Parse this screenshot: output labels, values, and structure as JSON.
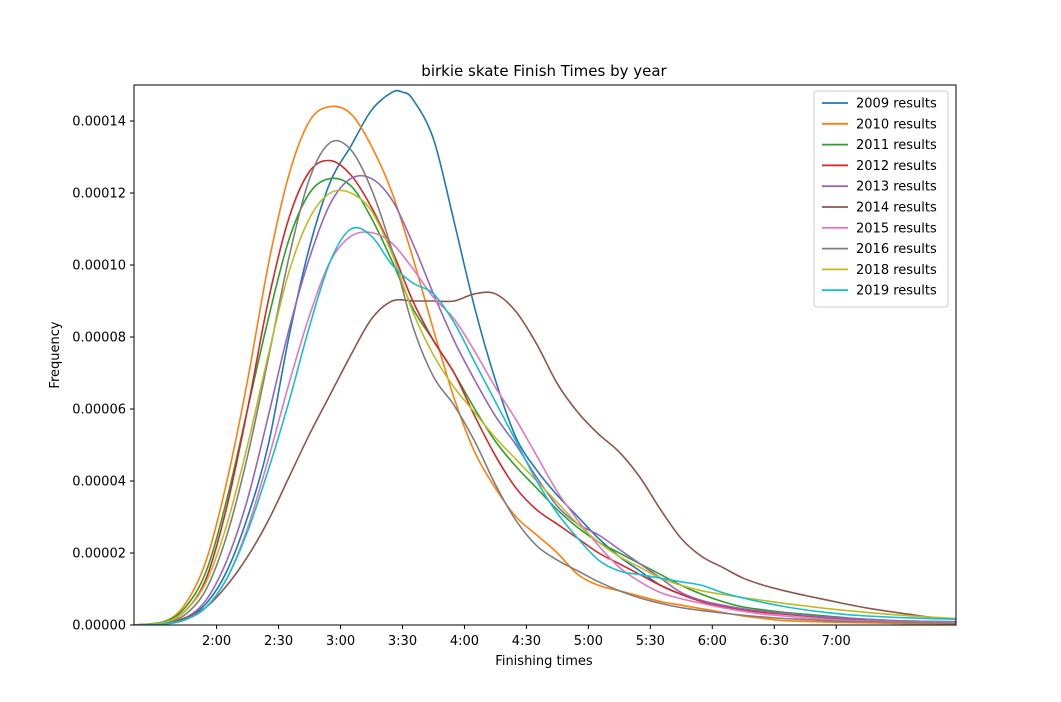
{
  "chart_data": {
    "type": "line",
    "title": "birkie skate Finish Times by year",
    "xlabel": "Finishing times",
    "ylabel": "Frequency",
    "xlim_minutes": [
      80,
      278
    ],
    "ylim": [
      0,
      0.00015
    ],
    "x_ticks": [
      {
        "label": "2:00",
        "minutes": 120
      },
      {
        "label": "2:30",
        "minutes": 150
      },
      {
        "label": "3:00",
        "minutes": 180
      },
      {
        "label": "3:30",
        "minutes": 210
      },
      {
        "label": "4:00",
        "minutes": 240
      },
      {
        "label": "4:30",
        "minutes": 270
      },
      {
        "label": "5:00",
        "minutes": 300
      },
      {
        "label": "5:30",
        "minutes": 330
      },
      {
        "label": "6:00",
        "minutes": 360
      },
      {
        "label": "6:30",
        "minutes": 390
      },
      {
        "label": "7:00",
        "minutes": 420
      }
    ],
    "y_ticks": [
      "0.00000",
      "0.00002",
      "0.00004",
      "0.00006",
      "0.00008",
      "0.00010",
      "0.00012",
      "0.00014"
    ],
    "y_tick_values": [
      0,
      2e-05,
      4e-05,
      6e-05,
      8e-05,
      0.0001,
      0.00012,
      0.00014
    ],
    "grid": false,
    "legend_position": "top-right",
    "series": [
      {
        "name": "2009 results",
        "color": "#1f77b4",
        "x": [
          80,
          95,
          105,
          115,
          125,
          135,
          145,
          155,
          165,
          175,
          185,
          195,
          205,
          210,
          215,
          225,
          235,
          245,
          255,
          265,
          275,
          285,
          295,
          305,
          315,
          325,
          335,
          345,
          355,
          365,
          375,
          385,
          395,
          405,
          415,
          425,
          435,
          445,
          455,
          465,
          478
        ],
        "y": [
          0,
          5e-07,
          2e-06,
          6e-06,
          1.5e-05,
          3e-05,
          5e-05,
          8e-05,
          0.000105,
          0.000123,
          0.000133,
          0.000143,
          0.000148,
          0.000148,
          0.000146,
          0.000135,
          0.000112,
          8.8e-05,
          6.8e-05,
          5.2e-05,
          4.3e-05,
          3.6e-05,
          3e-05,
          2.4e-05,
          1.9e-05,
          1.5e-05,
          1.1e-05,
          8.5e-06,
          6.5e-06,
          5e-06,
          4.3e-06,
          3.8e-06,
          3.3e-06,
          2.8e-06,
          2.3e-06,
          1.8e-06,
          1.5e-06,
          1.2e-06,
          1e-06,
          8e-07,
          6e-07
        ]
      },
      {
        "name": "2010 results",
        "color": "#ff7f0e",
        "x": [
          80,
          95,
          105,
          115,
          125,
          135,
          145,
          155,
          165,
          175,
          185,
          195,
          205,
          215,
          225,
          235,
          245,
          255,
          265,
          275,
          285,
          295,
          305,
          315,
          325,
          335,
          345,
          355,
          365,
          375,
          385,
          395,
          405,
          415,
          425,
          435,
          445,
          455,
          465,
          478
        ],
        "y": [
          0,
          1e-06,
          6e-06,
          1.8e-05,
          4e-05,
          6.8e-05,
          0.0001,
          0.000125,
          0.00014,
          0.000144,
          0.000142,
          0.000133,
          0.00012,
          0.000102,
          8.2e-05,
          6.3e-05,
          4.8e-05,
          3.8e-05,
          3e-05,
          2.5e-05,
          2e-05,
          1.4e-05,
          1.1e-05,
          9.5e-06,
          8e-06,
          6.5e-06,
          5.5e-06,
          4.5e-06,
          3.5e-06,
          2.5e-06,
          1.8e-06,
          1.2e-06,
          1e-06,
          8e-07,
          7e-07,
          6e-07,
          5e-07,
          4e-07,
          4e-07,
          3e-07
        ]
      },
      {
        "name": "2011 results",
        "color": "#2ca02c",
        "x": [
          80,
          95,
          105,
          115,
          125,
          135,
          145,
          155,
          165,
          175,
          185,
          195,
          205,
          215,
          225,
          235,
          245,
          255,
          265,
          275,
          285,
          295,
          305,
          315,
          325,
          335,
          345,
          355,
          365,
          375,
          385,
          395,
          405,
          415,
          425,
          435,
          445,
          455,
          465,
          478
        ],
        "y": [
          0,
          1e-06,
          5e-06,
          1.5e-05,
          3.5e-05,
          6e-05,
          8.5e-05,
          0.000107,
          0.00012,
          0.000124,
          0.000122,
          0.000113,
          0.000101,
          8.8e-05,
          7.9e-05,
          7e-05,
          6e-05,
          5.1e-05,
          4.4e-05,
          3.8e-05,
          3.2e-05,
          2.7e-05,
          2.3e-05,
          2e-05,
          1.7e-05,
          1.4e-05,
          1.1e-05,
          8.5e-06,
          6.5e-06,
          5e-06,
          4.2e-06,
          3.5e-06,
          3e-06,
          2.5e-06,
          2e-06,
          1.6e-06,
          1.3e-06,
          1.1e-06,
          1e-06,
          9e-07
        ]
      },
      {
        "name": "2012 results",
        "color": "#d62728",
        "x": [
          80,
          95,
          105,
          115,
          125,
          135,
          145,
          155,
          165,
          175,
          185,
          195,
          205,
          215,
          225,
          235,
          245,
          255,
          265,
          275,
          285,
          295,
          305,
          315,
          325,
          335,
          345,
          355,
          365,
          375,
          385,
          395,
          405,
          415,
          425,
          435,
          445,
          455,
          465,
          478
        ],
        "y": [
          0,
          8e-07,
          4e-06,
          1.3e-05,
          3.3e-05,
          6e-05,
          9e-05,
          0.000113,
          0.000126,
          0.000129,
          0.000125,
          0.000116,
          0.000104,
          9e-05,
          7.9e-05,
          7e-05,
          5.8e-05,
          4.7e-05,
          3.8e-05,
          3.2e-05,
          2.8e-05,
          2.4e-05,
          2e-05,
          1.7e-05,
          1.4e-05,
          1.1e-05,
          8.5e-06,
          6.5e-06,
          5.2e-06,
          4.2e-06,
          3.5e-06,
          3e-06,
          2.5e-06,
          2e-06,
          1.6e-06,
          1.3e-06,
          1.1e-06,
          9e-07,
          8e-07,
          7e-07
        ]
      },
      {
        "name": "2013 results",
        "color": "#9467bd",
        "x": [
          80,
          95,
          105,
          115,
          125,
          135,
          145,
          155,
          165,
          175,
          185,
          195,
          205,
          215,
          225,
          235,
          245,
          255,
          265,
          275,
          285,
          295,
          305,
          315,
          325,
          335,
          345,
          355,
          365,
          375,
          385,
          395,
          405,
          415,
          425,
          435,
          445,
          455,
          465,
          478
        ],
        "y": [
          0,
          5e-07,
          2e-06,
          7e-06,
          1.8e-05,
          3.5e-05,
          5.8e-05,
          8.2e-05,
          0.000102,
          0.000117,
          0.000124,
          0.000124,
          0.000118,
          0.000106,
          9.2e-05,
          7.9e-05,
          6.8e-05,
          5.8e-05,
          5e-05,
          4.1e-05,
          3.3e-05,
          2.8e-05,
          2.5e-05,
          2.1e-05,
          1.7e-05,
          1.3e-05,
          9e-06,
          6.8e-06,
          5.5e-06,
          4.5e-06,
          3.8e-06,
          3.2e-06,
          2.7e-06,
          2.2e-06,
          1.9e-06,
          1.6e-06,
          1.3e-06,
          1.1e-06,
          1e-06,
          9e-07
        ]
      },
      {
        "name": "2014 results",
        "color": "#8c564b",
        "x": [
          80,
          95,
          105,
          115,
          125,
          135,
          145,
          155,
          165,
          175,
          185,
          195,
          205,
          215,
          225,
          235,
          245,
          255,
          265,
          275,
          285,
          295,
          305,
          315,
          325,
          335,
          345,
          355,
          365,
          375,
          385,
          395,
          405,
          415,
          425,
          435,
          445,
          455,
          465,
          478
        ],
        "y": [
          0,
          5e-07,
          2e-06,
          5e-06,
          1.1e-05,
          1.9e-05,
          2.9e-05,
          4.1e-05,
          5.3e-05,
          6.4e-05,
          7.5e-05,
          8.5e-05,
          9e-05,
          9e-05,
          9e-05,
          9e-05,
          9.2e-05,
          9.2e-05,
          8.7e-05,
          7.8e-05,
          6.7e-05,
          5.9e-05,
          5.3e-05,
          4.8e-05,
          4.1e-05,
          3.2e-05,
          2.4e-05,
          1.9e-05,
          1.6e-05,
          1.3e-05,
          1.1e-05,
          9.5e-06,
          8.2e-06,
          7e-06,
          5.8e-06,
          4.7e-06,
          3.8e-06,
          3e-06,
          2.2e-06,
          1.5e-06
        ]
      },
      {
        "name": "2015 results",
        "color": "#e377c2",
        "x": [
          80,
          95,
          105,
          115,
          125,
          135,
          145,
          155,
          165,
          175,
          185,
          195,
          205,
          215,
          225,
          235,
          245,
          255,
          265,
          275,
          285,
          295,
          305,
          315,
          325,
          335,
          345,
          355,
          365,
          375,
          385,
          395,
          405,
          415,
          425,
          435,
          445,
          455,
          465,
          478
        ],
        "y": [
          0,
          3e-07,
          1.5e-06,
          5e-06,
          1.3e-05,
          2.7e-05,
          4.6e-05,
          6.7e-05,
          8.6e-05,
          0.000101,
          0.000108,
          0.000109,
          0.000106,
          9.9e-05,
          9.1e-05,
          8.5e-05,
          7.6e-05,
          6.6e-05,
          5.7e-05,
          4.7e-05,
          3.7e-05,
          2.9e-05,
          2.2e-05,
          1.6e-05,
          1.2e-05,
          9e-06,
          7.3e-06,
          6e-06,
          4.8e-06,
          3.8e-06,
          3e-06,
          2.5e-06,
          2e-06,
          1.6e-06,
          1.3e-06,
          1.1e-06,
          9e-07,
          8e-07,
          7e-07,
          6e-07
        ]
      },
      {
        "name": "2016 results",
        "color": "#7f7f7f",
        "x": [
          80,
          95,
          105,
          115,
          125,
          135,
          145,
          155,
          165,
          175,
          185,
          195,
          205,
          215,
          225,
          235,
          245,
          255,
          265,
          275,
          285,
          295,
          305,
          315,
          325,
          335,
          345,
          355,
          365,
          375,
          385,
          395,
          405,
          415,
          425,
          435,
          445,
          455,
          465,
          478
        ],
        "y": [
          0,
          6e-07,
          3e-06,
          1e-05,
          2.5e-05,
          4.7e-05,
          7.4e-05,
          0.000102,
          0.000124,
          0.000134,
          0.000132,
          0.000121,
          0.000104,
          8.3e-05,
          6.9e-05,
          6.1e-05,
          5.1e-05,
          3.9e-05,
          2.9e-05,
          2.2e-05,
          1.8e-05,
          1.5e-05,
          1.2e-05,
          9.5e-06,
          7.5e-06,
          6e-06,
          4.8e-06,
          4e-06,
          3.3e-06,
          2.7e-06,
          2.2e-06,
          1.8e-06,
          1.5e-06,
          1.2e-06,
          1e-06,
          9e-07,
          8e-07,
          7e-07,
          6e-07,
          5e-07
        ]
      },
      {
        "name": "2018 results",
        "color": "#bcbd22",
        "x": [
          80,
          95,
          105,
          115,
          125,
          135,
          145,
          155,
          165,
          175,
          185,
          195,
          205,
          215,
          225,
          235,
          245,
          255,
          265,
          275,
          285,
          295,
          305,
          315,
          325,
          335,
          345,
          355,
          365,
          375,
          385,
          395,
          405,
          415,
          425,
          435,
          445,
          455,
          465,
          478
        ],
        "y": [
          0,
          8e-07,
          4e-06,
          1.2e-05,
          2.8e-05,
          5e-05,
          7.5e-05,
          9.8e-05,
          0.000113,
          0.00012,
          0.00012,
          0.000115,
          0.000103,
          8.7e-05,
          7.5e-05,
          6.6e-05,
          5.9e-05,
          5.2e-05,
          4.6e-05,
          4e-05,
          3.4e-05,
          2.8e-05,
          2.3e-05,
          1.9e-05,
          1.6e-05,
          1.3e-05,
          1.1e-05,
          9.5e-06,
          8.5e-06,
          7.6e-06,
          6.8e-06,
          6e-06,
          5.3e-06,
          4.6e-06,
          4e-06,
          3.5e-06,
          3e-06,
          2.6e-06,
          2.2e-06,
          1.8e-06
        ]
      },
      {
        "name": "2019 results",
        "color": "#17becf",
        "x": [
          80,
          95,
          105,
          115,
          125,
          135,
          145,
          155,
          165,
          175,
          185,
          195,
          205,
          215,
          225,
          235,
          245,
          255,
          265,
          275,
          285,
          295,
          305,
          315,
          325,
          335,
          345,
          355,
          365,
          375,
          385,
          395,
          405,
          415,
          425,
          435,
          445,
          455,
          465,
          478
        ],
        "y": [
          0,
          3e-07,
          1.5e-06,
          5e-06,
          1.3e-05,
          2.6e-05,
          4.3e-05,
          6.2e-05,
          8.3e-05,
          0.000101,
          0.00011,
          0.000108,
          0.0001,
          9.5e-05,
          9.2e-05,
          8.4e-05,
          7.3e-05,
          6.2e-05,
          5.1e-05,
          4e-05,
          3.1e-05,
          2.4e-05,
          1.8e-05,
          1.5e-05,
          1.4e-05,
          1.3e-05,
          1.2e-05,
          1.1e-05,
          9e-06,
          7.5e-06,
          6.2e-06,
          5.1e-06,
          4.2e-06,
          3.5e-06,
          2.9e-06,
          2.5e-06,
          2.2e-06,
          2e-06,
          1.8e-06,
          1.6e-06
        ]
      }
    ]
  }
}
